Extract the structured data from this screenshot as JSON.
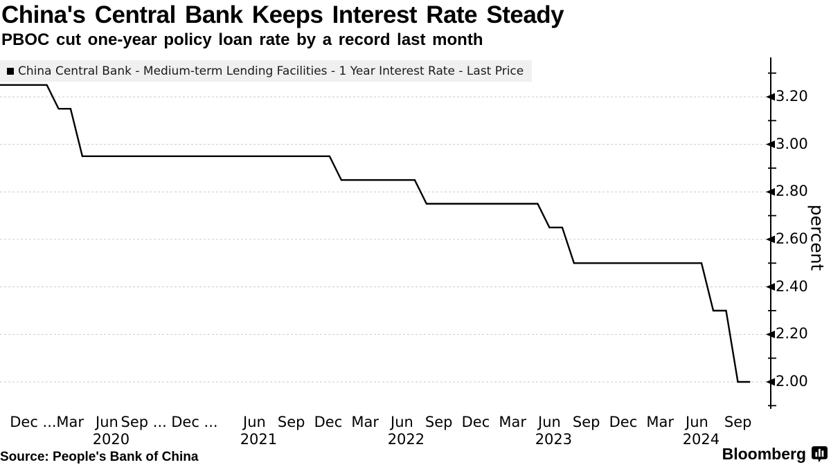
{
  "title": "China's Central Bank Keeps Interest Rate Steady",
  "subtitle": "PBOC cut one-year policy loan rate by a record last month",
  "legend": {
    "marker_color": "#000000",
    "label": "China Central Bank - Medium-term Lending Facilities - 1 Year Interest Rate - Last Price"
  },
  "source": "Source: People's Bank of China",
  "brand": {
    "name": "Bloomberg",
    "icon": "bar-chart-bubble-icon"
  },
  "chart_data": {
    "type": "line",
    "step": true,
    "title": "China's Central Bank Keeps Interest Rate Steady",
    "subtitle": "PBOC cut one-year policy loan rate by a record last month",
    "ylabel": "percent",
    "ylim": [
      1.89,
      3.37
    ],
    "grid": "horizontal-dashed",
    "legend_position": "top-left",
    "line_color": "#000000",
    "grid_color": "#c9c9c9",
    "legend_bg": "#f0f0f0",
    "x_domain": [
      "2019-09-24",
      "2024-12-01"
    ],
    "yticks_major": [
      {
        "value": 3.2,
        "label": "3.20"
      },
      {
        "value": 3.0,
        "label": "3.00"
      },
      {
        "value": 2.8,
        "label": "2.80"
      },
      {
        "value": 2.6,
        "label": "2.60"
      },
      {
        "value": 2.4,
        "label": "2.40"
      },
      {
        "value": 2.2,
        "label": "2.20"
      },
      {
        "value": 2.0,
        "label": "2.00"
      }
    ],
    "yticks_minor": [
      3.3,
      3.1,
      2.9,
      2.7,
      2.5,
      2.3,
      2.1,
      1.9
    ],
    "xticks": [
      {
        "date": "2019-12-15",
        "label": "Dec ..."
      },
      {
        "date": "2020-03-15",
        "label": "Mar"
      },
      {
        "date": "2020-06-15",
        "label": "Jun",
        "year": "2020"
      },
      {
        "date": "2020-09-15",
        "label": "Sep ..."
      },
      {
        "date": "2020-12-15",
        "label": "Dec ...",
        "dx": 20
      },
      {
        "date": "2021-06-15",
        "label": "Jun",
        "year": "2021"
      },
      {
        "date": "2021-09-15",
        "label": "Sep"
      },
      {
        "date": "2021-12-15",
        "label": "Dec"
      },
      {
        "date": "2022-03-15",
        "label": "Mar"
      },
      {
        "date": "2022-06-15",
        "label": "Jun",
        "year": "2022"
      },
      {
        "date": "2022-09-15",
        "label": "Sep"
      },
      {
        "date": "2022-12-15",
        "label": "Dec"
      },
      {
        "date": "2023-03-15",
        "label": "Mar"
      },
      {
        "date": "2023-06-15",
        "label": "Jun",
        "year": "2023"
      },
      {
        "date": "2023-09-15",
        "label": "Sep"
      },
      {
        "date": "2023-12-15",
        "label": "Dec"
      },
      {
        "date": "2024-03-15",
        "label": "Mar"
      },
      {
        "date": "2024-06-15",
        "label": "Jun",
        "year": "2024"
      },
      {
        "date": "2024-09-15",
        "label": "Sep",
        "dx": 6
      }
    ],
    "series": [
      {
        "name": "China Central Bank - Medium-term Lending Facilities - 1 Year Interest Rate - Last Price",
        "color": "#000000",
        "points": [
          {
            "date": "2019-09-24",
            "value": 3.25
          },
          {
            "date": "2020-02-17",
            "value": 3.15
          },
          {
            "date": "2020-04-15",
            "value": 2.95
          },
          {
            "date": "2022-01-17",
            "value": 2.85
          },
          {
            "date": "2022-08-15",
            "value": 2.75
          },
          {
            "date": "2023-06-15",
            "value": 2.65
          },
          {
            "date": "2023-08-15",
            "value": 2.5
          },
          {
            "date": "2024-07-25",
            "value": 2.3
          },
          {
            "date": "2024-09-25",
            "value": 2.0
          }
        ],
        "end_date": "2024-10-25"
      }
    ]
  }
}
